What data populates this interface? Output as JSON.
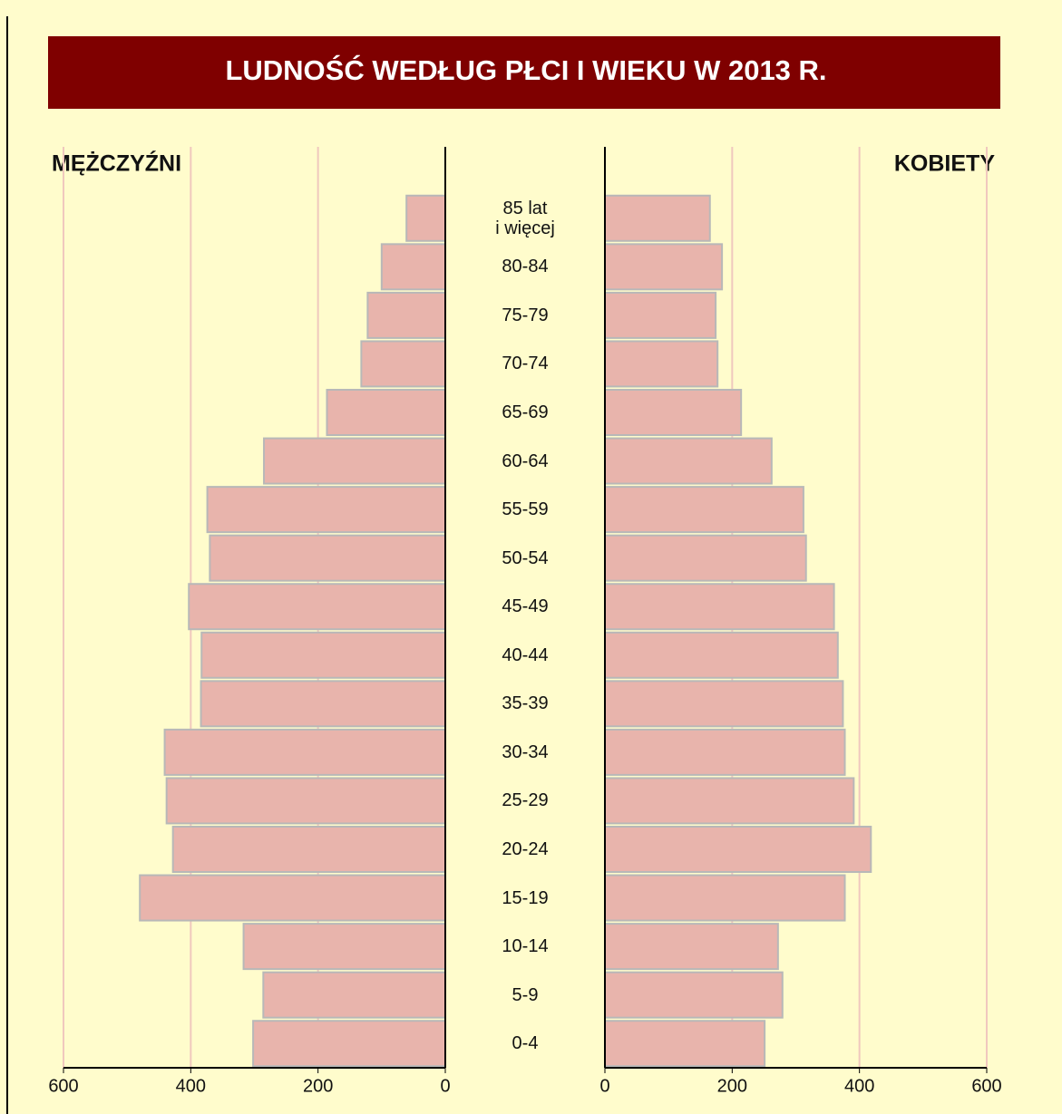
{
  "title": "LUDNOŚĆ WEDŁUG PŁCI I WIEKU W 2013 R.",
  "chart_data": [
    {
      "type": "bar",
      "orientation": "horizontal",
      "direction": "left",
      "title": "MĘŻCZYŹNI",
      "categories": [
        "85 lat\ni więcej",
        "80-84",
        "75-79",
        "70-74",
        "65-69",
        "60-64",
        "55-59",
        "50-54",
        "45-49",
        "40-44",
        "35-39",
        "30-34",
        "25-29",
        "20-24",
        "15-19",
        "10-14",
        "5-9",
        "0-4"
      ],
      "values": [
        61,
        100,
        122,
        132,
        186,
        285,
        374,
        370,
        403,
        383,
        384,
        441,
        438,
        428,
        480,
        317,
        286,
        302
      ],
      "color": "#e8b4ac",
      "xlim": [
        0,
        600
      ],
      "xticks": [
        0,
        200,
        400,
        600
      ],
      "grid": true
    },
    {
      "type": "bar",
      "orientation": "horizontal",
      "direction": "right",
      "title": "KOBIETY",
      "values": [
        165,
        184,
        174,
        177,
        214,
        262,
        312,
        316,
        360,
        366,
        374,
        377,
        391,
        418,
        377,
        272,
        279,
        251
      ],
      "color": "#e8b4ac",
      "xlim": [
        0,
        600
      ],
      "xticks": [
        0,
        200,
        400,
        600
      ],
      "grid": true
    }
  ]
}
